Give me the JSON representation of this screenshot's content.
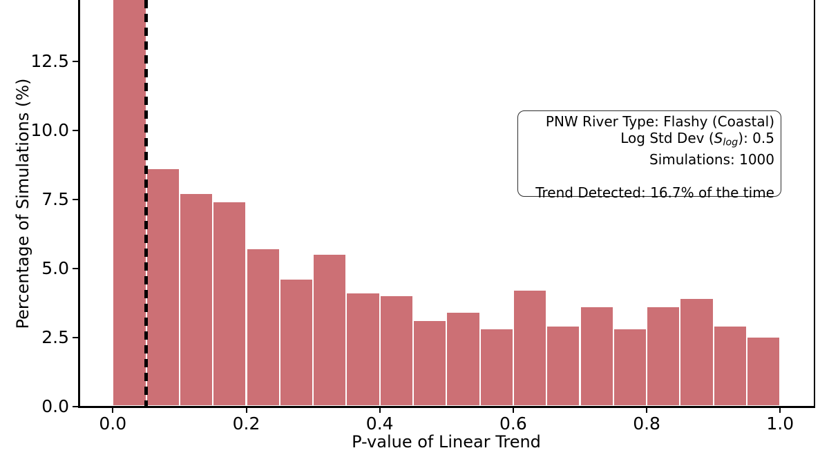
{
  "figure": {
    "xlabel": "P-value of Linear Trend",
    "ylabel": "Percentage of Simulations (%)"
  },
  "annotation": {
    "river_type_line": "PNW River Type: Flashy (Coastal)",
    "log_std_prefix": "Log Std Dev (",
    "log_std_var": "S",
    "log_std_sub": "log",
    "log_std_suffix": "): 0.5",
    "simulations_line": "Simulations: 1000",
    "trend_line": "Trend Detected: 16.7% of the time"
  },
  "chart_data": {
    "type": "bar",
    "title": "",
    "xlabel": "P-value of Linear Trend",
    "ylabel": "Percentage of Simulations (%)",
    "bin_edges": [
      0.0,
      0.05,
      0.1,
      0.15,
      0.2,
      0.25,
      0.3,
      0.35,
      0.4,
      0.45,
      0.5,
      0.55,
      0.6,
      0.65,
      0.7,
      0.75,
      0.8,
      0.85,
      0.9,
      0.95,
      1.0
    ],
    "values": [
      16.7,
      8.6,
      7.7,
      7.4,
      5.7,
      4.6,
      5.5,
      4.1,
      4.0,
      3.1,
      3.4,
      2.8,
      4.2,
      2.9,
      3.6,
      2.8,
      3.6,
      3.9,
      2.9,
      2.5
    ],
    "x_tick_values": [
      0.0,
      0.2,
      0.4,
      0.6,
      0.8,
      1.0
    ],
    "x_tick_labels": [
      "0.0",
      "0.2",
      "0.4",
      "0.6",
      "0.8",
      "1.0"
    ],
    "y_tick_values": [
      0.0,
      2.5,
      5.0,
      7.5,
      10.0,
      12.5,
      15.0
    ],
    "y_tick_labels": [
      "0.0",
      "2.5",
      "5.0",
      "7.5",
      "10.0",
      "12.5",
      "15.0"
    ],
    "xlim": [
      -0.05,
      1.05
    ],
    "ylim_visible": [
      0,
      14.7
    ],
    "top_cropped": true,
    "vline_x": 0.05,
    "grid": false,
    "legend_position": "none",
    "colors": {
      "bar": "#cc7075",
      "bar_edge": "#ffffff",
      "vline": "#000000",
      "spine": "#000000",
      "text": "#000000",
      "annotation_border": "#2b2b2b"
    }
  }
}
